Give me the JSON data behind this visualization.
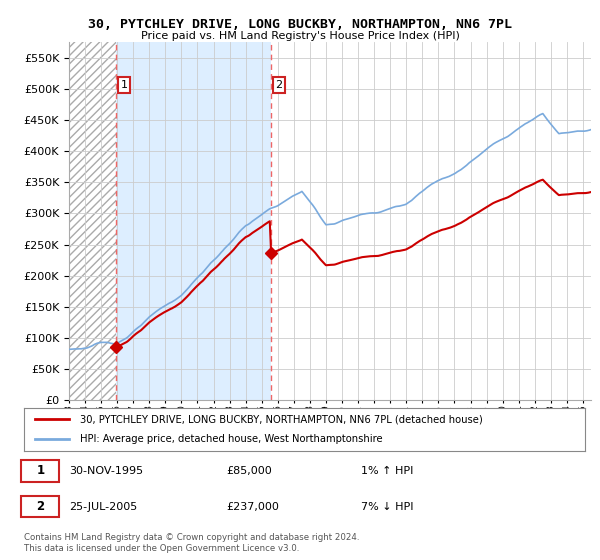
{
  "title_line1": "30, PYTCHLEY DRIVE, LONG BUCKBY, NORTHAMPTON, NN6 7PL",
  "title_line2": "Price paid vs. HM Land Registry's House Price Index (HPI)",
  "legend_property": "30, PYTCHLEY DRIVE, LONG BUCKBY, NORTHAMPTON, NN6 7PL (detached house)",
  "legend_hpi": "HPI: Average price, detached house, West Northamptonshire",
  "transaction1_date": "30-NOV-1995",
  "transaction1_price": 85000,
  "transaction1_hpi": "1% ↑ HPI",
  "transaction2_date": "25-JUL-2005",
  "transaction2_price": 237000,
  "transaction2_hpi": "7% ↓ HPI",
  "footer": "Contains HM Land Registry data © Crown copyright and database right 2024.\nThis data is licensed under the Open Government Licence v3.0.",
  "ylim": [
    0,
    575000
  ],
  "yticks": [
    0,
    50000,
    100000,
    150000,
    200000,
    250000,
    300000,
    350000,
    400000,
    450000,
    500000,
    550000
  ],
  "ytick_labels": [
    "£0",
    "£50K",
    "£100K",
    "£150K",
    "£200K",
    "£250K",
    "£300K",
    "£350K",
    "£400K",
    "£450K",
    "£500K",
    "£550K"
  ],
  "property_color": "#cc0000",
  "hpi_color": "#7aaadd",
  "bg_hatch_color": "#dddddd",
  "bg_between_color": "#ddeeff",
  "bg_after_color": "#ffffff",
  "grid_color": "#cccccc",
  "vline_color": "#ee6666",
  "marker_color": "#cc0000",
  "transaction1_x": 1995.917,
  "transaction2_x": 2005.556,
  "xmin": 1993,
  "xmax": 2025.5
}
